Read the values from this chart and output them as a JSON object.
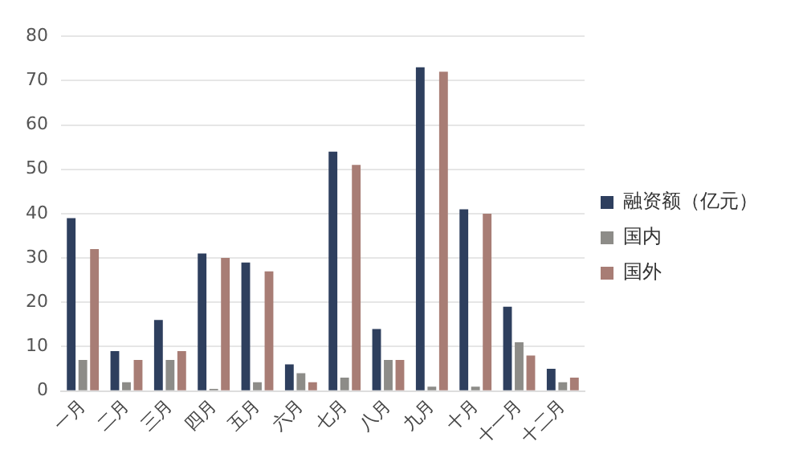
{
  "chart_data": {
    "type": "bar",
    "categories": [
      "一月",
      "二月",
      "三月",
      "四月",
      "五月",
      "六月",
      "七月",
      "八月",
      "九月",
      "十月",
      "十一月",
      "十二月"
    ],
    "series": [
      {
        "name": "融资额（亿元）",
        "color": "#2e3f5e",
        "values": [
          39,
          9,
          16,
          31,
          29,
          6,
          54,
          14,
          73,
          41,
          19,
          5
        ]
      },
      {
        "name": "国内",
        "color": "#8d8c88",
        "values": [
          7,
          2,
          7,
          0.5,
          2,
          4,
          3,
          7,
          1,
          1,
          11,
          2
        ]
      },
      {
        "name": "国外",
        "color": "#a87d75",
        "values": [
          32,
          7,
          9,
          30,
          27,
          2,
          51,
          7,
          72,
          40,
          8,
          3
        ]
      }
    ],
    "ylim": [
      0,
      80
    ],
    "yticks": [
      0,
      10,
      20,
      30,
      40,
      50,
      60,
      70,
      80
    ],
    "grid": "y",
    "legend": "right"
  }
}
